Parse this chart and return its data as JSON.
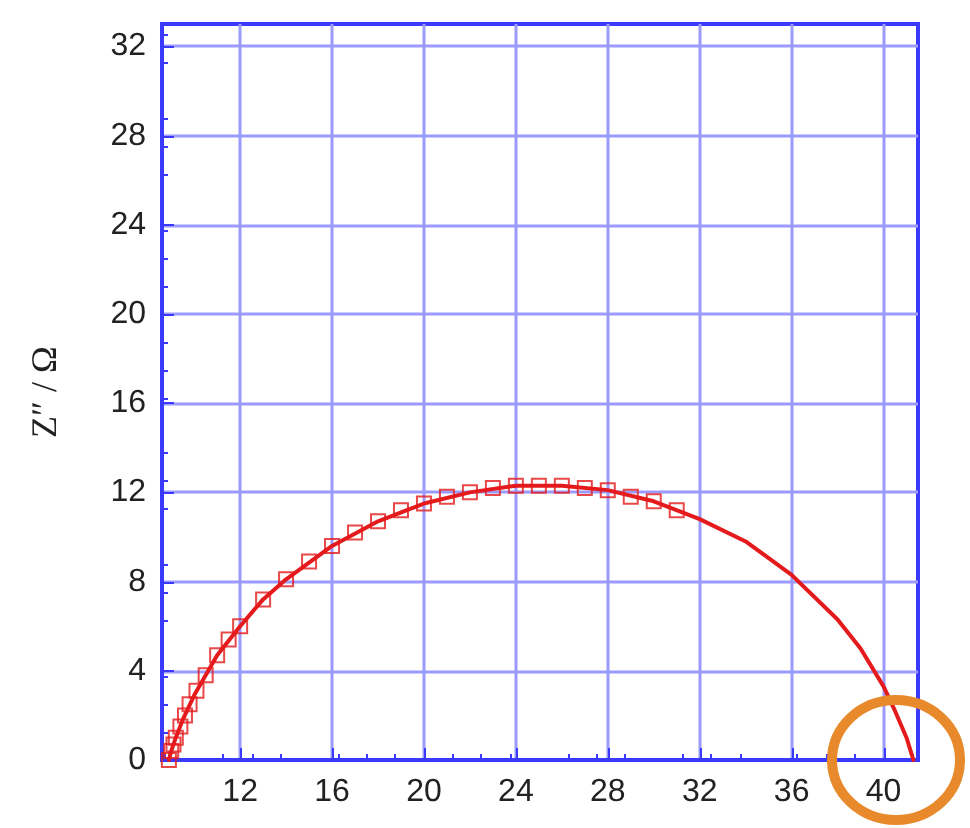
{
  "chart_data": {
    "type": "scatter",
    "ylabel": "Z″ / Ω",
    "xlim": [
      8.6,
      41.5
    ],
    "xticks": [
      12,
      16,
      20,
      24,
      28,
      32,
      36,
      40
    ],
    "ylim": [
      0,
      33
    ],
    "yticks": [
      0,
      4,
      8,
      12,
      16,
      20,
      24,
      28,
      32
    ],
    "grid": true,
    "series": [
      {
        "marker": "square",
        "color": "#e41a1c",
        "x": [
          8.9,
          9.0,
          9.1,
          9.2,
          9.4,
          9.6,
          9.8,
          10.1,
          10.5,
          11,
          11.5,
          12,
          13,
          14,
          15,
          16,
          17,
          18,
          19,
          20,
          21,
          22,
          23,
          24,
          25,
          26,
          27,
          28,
          29,
          30,
          31
        ],
        "values": [
          0,
          0.4,
          0.7,
          1.0,
          1.5,
          2.0,
          2.5,
          3.1,
          3.8,
          4.7,
          5.4,
          6.0,
          7.2,
          8.1,
          8.9,
          9.6,
          10.2,
          10.7,
          11.2,
          11.5,
          11.8,
          12.0,
          12.2,
          12.3,
          12.3,
          12.3,
          12.2,
          12.1,
          11.8,
          11.6,
          11.2
        ]
      },
      {
        "type": "line",
        "marker": "none",
        "line_style": "solid",
        "color": "#e41a1c",
        "x": [
          8.9,
          9.0,
          9.2,
          9.5,
          10,
          11,
          12,
          13,
          14,
          16,
          18,
          20,
          22,
          24,
          25,
          26,
          28,
          30,
          32,
          34,
          36,
          38,
          39,
          40,
          40.5,
          41,
          41.3
        ],
        "values": [
          0,
          0.4,
          1.0,
          1.8,
          2.9,
          4.7,
          6.0,
          7.2,
          8.1,
          9.6,
          10.7,
          11.5,
          12.0,
          12.3,
          12.3,
          12.3,
          12.1,
          11.6,
          10.8,
          9.8,
          8.3,
          6.3,
          5.0,
          3.3,
          2.2,
          1.0,
          0
        ]
      }
    ]
  }
}
